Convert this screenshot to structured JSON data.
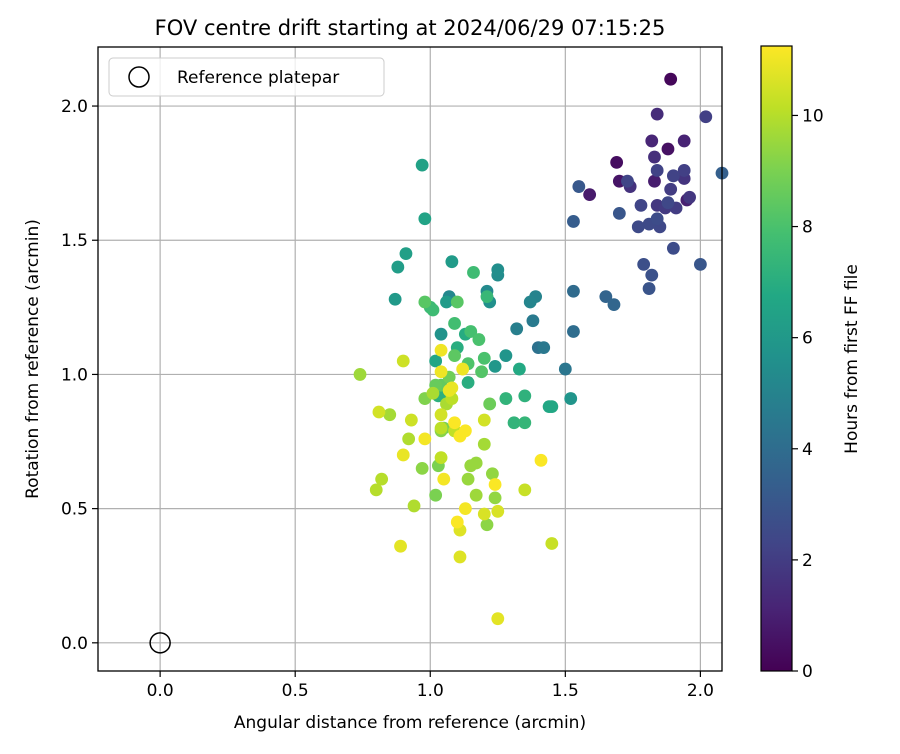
{
  "chart_data": {
    "type": "scatter",
    "title": "FOV centre drift starting at 2024/06/29 07:15:25",
    "xlabel": "Angular distance from reference (arcmin)",
    "ylabel": "Rotation from reference (arcmin)",
    "xlim": [
      -0.23,
      2.08
    ],
    "ylim": [
      -0.105,
      2.22
    ],
    "xticks": [
      0.0,
      0.5,
      1.0,
      1.5,
      2.0
    ],
    "xtick_labels": [
      "0.0",
      "0.5",
      "1.0",
      "1.5",
      "2.0"
    ],
    "yticks": [
      0.0,
      0.5,
      1.0,
      1.5,
      2.0
    ],
    "ytick_labels": [
      "0.0",
      "0.5",
      "1.0",
      "1.5",
      "2.0"
    ],
    "grid": true,
    "legend": {
      "placement": "top-left",
      "entries": [
        "Reference platepar"
      ]
    },
    "reference_point": {
      "x": 0.0,
      "y": 0.0,
      "label": "Reference platepar",
      "marker": "open-circle"
    },
    "colorbar": {
      "label": "Hours from first FF file",
      "colormap": "viridis",
      "range": [
        0,
        11.25
      ],
      "ticks": [
        0,
        2,
        4,
        6,
        8,
        10
      ],
      "tick_labels": [
        "0",
        "2",
        "4",
        "6",
        "8",
        "10"
      ]
    },
    "series": [
      {
        "points": [
          {
            "x": 1.89,
            "y": 2.1,
            "h": 0.2
          },
          {
            "x": 1.69,
            "y": 1.79,
            "h": 0.4
          },
          {
            "x": 1.88,
            "y": 1.84,
            "h": 0.5
          },
          {
            "x": 1.7,
            "y": 1.72,
            "h": 0.6
          },
          {
            "x": 1.59,
            "y": 1.67,
            "h": 0.8
          },
          {
            "x": 1.83,
            "y": 1.72,
            "h": 0.9
          },
          {
            "x": 1.95,
            "y": 1.65,
            "h": 1.0
          },
          {
            "x": 1.94,
            "y": 1.87,
            "h": 1.1
          },
          {
            "x": 1.82,
            "y": 1.87,
            "h": 1.2
          },
          {
            "x": 1.84,
            "y": 1.97,
            "h": 1.4
          },
          {
            "x": 1.83,
            "y": 1.81,
            "h": 1.5
          },
          {
            "x": 1.74,
            "y": 1.7,
            "h": 1.6
          },
          {
            "x": 1.94,
            "y": 1.73,
            "h": 1.7
          },
          {
            "x": 1.96,
            "y": 1.66,
            "h": 1.8
          },
          {
            "x": 1.84,
            "y": 1.63,
            "h": 1.8
          },
          {
            "x": 1.87,
            "y": 1.62,
            "h": 1.9
          },
          {
            "x": 1.91,
            "y": 1.62,
            "h": 2.0
          },
          {
            "x": 1.89,
            "y": 1.69,
            "h": 2.0
          },
          {
            "x": 2.02,
            "y": 1.96,
            "h": 2.1
          },
          {
            "x": 1.94,
            "y": 1.76,
            "h": 2.1
          },
          {
            "x": 1.9,
            "y": 1.74,
            "h": 2.2
          },
          {
            "x": 1.84,
            "y": 1.76,
            "h": 2.2
          },
          {
            "x": 1.73,
            "y": 1.72,
            "h": 2.3
          },
          {
            "x": 1.78,
            "y": 1.63,
            "h": 2.3
          },
          {
            "x": 1.85,
            "y": 1.55,
            "h": 2.4
          },
          {
            "x": 1.88,
            "y": 1.64,
            "h": 2.4
          },
          {
            "x": 1.81,
            "y": 1.56,
            "h": 2.5
          },
          {
            "x": 1.77,
            "y": 1.55,
            "h": 2.5
          },
          {
            "x": 1.84,
            "y": 1.58,
            "h": 2.6
          },
          {
            "x": 1.9,
            "y": 1.47,
            "h": 2.6
          },
          {
            "x": 1.79,
            "y": 1.41,
            "h": 2.7
          },
          {
            "x": 1.82,
            "y": 1.37,
            "h": 2.8
          },
          {
            "x": 1.81,
            "y": 1.32,
            "h": 2.9
          },
          {
            "x": 2.0,
            "y": 1.41,
            "h": 3.0
          },
          {
            "x": 1.7,
            "y": 1.6,
            "h": 3.0
          },
          {
            "x": 1.55,
            "y": 1.7,
            "h": 3.1
          },
          {
            "x": 1.53,
            "y": 1.57,
            "h": 3.3
          },
          {
            "x": 2.08,
            "y": 1.75,
            "h": 3.4
          },
          {
            "x": 1.65,
            "y": 1.29,
            "h": 3.6
          },
          {
            "x": 1.68,
            "y": 1.26,
            "h": 3.7
          },
          {
            "x": 1.53,
            "y": 1.31,
            "h": 3.9
          },
          {
            "x": 1.53,
            "y": 1.16,
            "h": 4.0
          },
          {
            "x": 1.4,
            "y": 1.1,
            "h": 4.2
          },
          {
            "x": 1.5,
            "y": 1.02,
            "h": 4.4
          },
          {
            "x": 1.42,
            "y": 1.1,
            "h": 4.5
          },
          {
            "x": 1.38,
            "y": 1.2,
            "h": 4.6
          },
          {
            "x": 1.32,
            "y": 1.17,
            "h": 4.8
          },
          {
            "x": 1.39,
            "y": 1.29,
            "h": 5.0
          },
          {
            "x": 1.37,
            "y": 1.27,
            "h": 5.1
          },
          {
            "x": 1.07,
            "y": 1.29,
            "h": 5.2
          },
          {
            "x": 1.21,
            "y": 1.31,
            "h": 5.3
          },
          {
            "x": 1.25,
            "y": 1.37,
            "h": 5.4
          },
          {
            "x": 1.25,
            "y": 1.39,
            "h": 5.5
          },
          {
            "x": 1.22,
            "y": 1.27,
            "h": 5.6
          },
          {
            "x": 1.04,
            "y": 1.15,
            "h": 5.7
          },
          {
            "x": 1.28,
            "y": 1.07,
            "h": 5.8
          },
          {
            "x": 1.52,
            "y": 0.91,
            "h": 5.8
          },
          {
            "x": 1.24,
            "y": 1.03,
            "h": 5.9
          },
          {
            "x": 0.87,
            "y": 1.28,
            "h": 6.0
          },
          {
            "x": 1.06,
            "y": 1.27,
            "h": 6.1
          },
          {
            "x": 1.08,
            "y": 1.42,
            "h": 6.1
          },
          {
            "x": 0.88,
            "y": 1.4,
            "h": 6.2
          },
          {
            "x": 0.91,
            "y": 1.45,
            "h": 6.3
          },
          {
            "x": 0.97,
            "y": 1.78,
            "h": 6.4
          },
          {
            "x": 0.98,
            "y": 1.58,
            "h": 6.5
          },
          {
            "x": 1.02,
            "y": 1.05,
            "h": 6.6
          },
          {
            "x": 1.44,
            "y": 0.88,
            "h": 6.7
          },
          {
            "x": 1.45,
            "y": 0.88,
            "h": 6.7
          },
          {
            "x": 1.33,
            "y": 1.02,
            "h": 6.8
          },
          {
            "x": 1.13,
            "y": 1.15,
            "h": 6.9
          },
          {
            "x": 1.1,
            "y": 1.1,
            "h": 7.0
          },
          {
            "x": 1.14,
            "y": 0.97,
            "h": 7.0
          },
          {
            "x": 1.03,
            "y": 0.92,
            "h": 7.1
          },
          {
            "x": 1.05,
            "y": 0.92,
            "h": 7.1
          },
          {
            "x": 1.35,
            "y": 0.92,
            "h": 7.2
          },
          {
            "x": 1.31,
            "y": 0.82,
            "h": 7.3
          },
          {
            "x": 1.28,
            "y": 0.91,
            "h": 7.3
          },
          {
            "x": 1.35,
            "y": 0.82,
            "h": 7.4
          },
          {
            "x": 1.21,
            "y": 1.29,
            "h": 7.5
          },
          {
            "x": 1.0,
            "y": 1.25,
            "h": 7.6
          },
          {
            "x": 1.01,
            "y": 1.24,
            "h": 7.7
          },
          {
            "x": 1.16,
            "y": 1.38,
            "h": 7.7
          },
          {
            "x": 1.09,
            "y": 1.19,
            "h": 7.8
          },
          {
            "x": 1.15,
            "y": 1.16,
            "h": 7.9
          },
          {
            "x": 1.18,
            "y": 1.13,
            "h": 8.0
          },
          {
            "x": 1.2,
            "y": 1.06,
            "h": 8.0
          },
          {
            "x": 1.14,
            "y": 1.04,
            "h": 8.1
          },
          {
            "x": 1.19,
            "y": 1.01,
            "h": 8.2
          },
          {
            "x": 1.1,
            "y": 1.27,
            "h": 8.3
          },
          {
            "x": 0.98,
            "y": 1.27,
            "h": 8.3
          },
          {
            "x": 1.09,
            "y": 1.07,
            "h": 8.4
          },
          {
            "x": 1.04,
            "y": 0.96,
            "h": 8.5
          },
          {
            "x": 1.02,
            "y": 0.96,
            "h": 8.6
          },
          {
            "x": 1.22,
            "y": 0.89,
            "h": 8.7
          },
          {
            "x": 1.07,
            "y": 0.99,
            "h": 8.8
          },
          {
            "x": 1.05,
            "y": 0.8,
            "h": 8.9
          },
          {
            "x": 1.03,
            "y": 0.66,
            "h": 9.0
          },
          {
            "x": 1.02,
            "y": 0.55,
            "h": 9.0
          },
          {
            "x": 0.98,
            "y": 0.91,
            "h": 9.1
          },
          {
            "x": 1.09,
            "y": 0.79,
            "h": 9.2
          },
          {
            "x": 1.04,
            "y": 0.79,
            "h": 9.2
          },
          {
            "x": 0.97,
            "y": 0.65,
            "h": 9.3
          },
          {
            "x": 1.21,
            "y": 0.44,
            "h": 9.3
          },
          {
            "x": 1.24,
            "y": 0.54,
            "h": 9.4
          },
          {
            "x": 1.23,
            "y": 0.63,
            "h": 9.4
          },
          {
            "x": 1.17,
            "y": 0.67,
            "h": 9.5
          },
          {
            "x": 1.14,
            "y": 0.61,
            "h": 9.5
          },
          {
            "x": 1.15,
            "y": 0.66,
            "h": 9.5
          },
          {
            "x": 1.17,
            "y": 0.55,
            "h": 9.6
          },
          {
            "x": 0.74,
            "y": 1.0,
            "h": 9.6
          },
          {
            "x": 1.2,
            "y": 0.74,
            "h": 9.7
          },
          {
            "x": 0.85,
            "y": 0.85,
            "h": 9.7
          },
          {
            "x": 1.01,
            "y": 0.93,
            "h": 9.8
          },
          {
            "x": 1.06,
            "y": 0.89,
            "h": 9.8
          },
          {
            "x": 0.92,
            "y": 0.76,
            "h": 9.9
          },
          {
            "x": 0.94,
            "y": 0.51,
            "h": 9.9
          },
          {
            "x": 0.82,
            "y": 0.61,
            "h": 10.0
          },
          {
            "x": 0.8,
            "y": 0.57,
            "h": 10.0
          },
          {
            "x": 1.04,
            "y": 0.8,
            "h": 10.1
          },
          {
            "x": 1.08,
            "y": 0.91,
            "h": 10.1
          },
          {
            "x": 1.04,
            "y": 0.69,
            "h": 10.2
          },
          {
            "x": 1.09,
            "y": 0.79,
            "h": 10.2
          },
          {
            "x": 1.35,
            "y": 0.57,
            "h": 10.3
          },
          {
            "x": 1.45,
            "y": 0.37,
            "h": 10.3
          },
          {
            "x": 0.9,
            "y": 1.05,
            "h": 10.4
          },
          {
            "x": 0.93,
            "y": 0.83,
            "h": 10.4
          },
          {
            "x": 0.81,
            "y": 0.86,
            "h": 10.5
          },
          {
            "x": 1.04,
            "y": 0.85,
            "h": 10.5
          },
          {
            "x": 1.2,
            "y": 0.83,
            "h": 10.5
          },
          {
            "x": 1.2,
            "y": 0.48,
            "h": 10.6
          },
          {
            "x": 1.25,
            "y": 0.49,
            "h": 10.6
          },
          {
            "x": 1.11,
            "y": 0.42,
            "h": 10.7
          },
          {
            "x": 1.11,
            "y": 0.32,
            "h": 10.7
          },
          {
            "x": 1.25,
            "y": 0.09,
            "h": 10.8
          },
          {
            "x": 0.89,
            "y": 0.36,
            "h": 10.8
          },
          {
            "x": 0.9,
            "y": 0.7,
            "h": 10.9
          },
          {
            "x": 1.08,
            "y": 0.95,
            "h": 10.9
          },
          {
            "x": 1.07,
            "y": 0.94,
            "h": 10.9
          },
          {
            "x": 1.12,
            "y": 1.02,
            "h": 11.0
          },
          {
            "x": 1.04,
            "y": 1.01,
            "h": 11.0
          },
          {
            "x": 1.04,
            "y": 1.09,
            "h": 11.0
          },
          {
            "x": 0.98,
            "y": 0.76,
            "h": 11.1
          },
          {
            "x": 1.05,
            "y": 0.61,
            "h": 11.1
          },
          {
            "x": 1.13,
            "y": 0.5,
            "h": 11.1
          },
          {
            "x": 1.09,
            "y": 0.82,
            "h": 11.2
          },
          {
            "x": 1.41,
            "y": 0.68,
            "h": 11.2
          },
          {
            "x": 1.11,
            "y": 0.77,
            "h": 11.2
          },
          {
            "x": 1.1,
            "y": 0.45,
            "h": 11.2
          },
          {
            "x": 1.13,
            "y": 0.79,
            "h": 11.2
          },
          {
            "x": 1.24,
            "y": 0.59,
            "h": 11.2
          }
        ]
      }
    ]
  }
}
